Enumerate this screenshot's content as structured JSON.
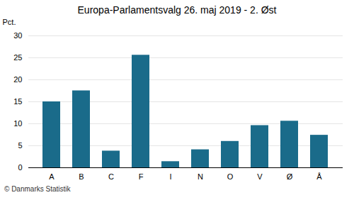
{
  "chart_data": {
    "type": "bar",
    "title": "Europa-Parlamentsvalg 26. maj 2019 - 2. Øst",
    "categories": [
      "A",
      "B",
      "C",
      "F",
      "I",
      "N",
      "O",
      "V",
      "Ø",
      "Å"
    ],
    "values": [
      15.0,
      17.5,
      3.8,
      25.6,
      1.4,
      4.1,
      6.0,
      9.6,
      10.6,
      7.4
    ],
    "color": "#1a6b8a",
    "ylabel": "Pct.",
    "ylim": [
      0,
      30
    ],
    "yticks": [
      0,
      5,
      10,
      15,
      20,
      25,
      30
    ],
    "grid": true,
    "annotations": [
      "© Danmarks Statistik"
    ]
  }
}
